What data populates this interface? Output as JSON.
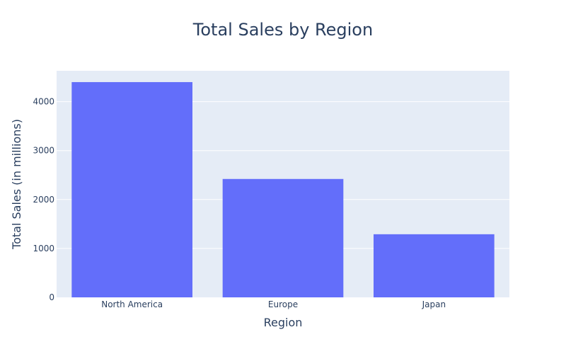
{
  "chart_data": {
    "type": "bar",
    "title": "Total Sales by Region",
    "xlabel": "Region",
    "ylabel": "Total Sales (in millions)",
    "categories": [
      "North America",
      "Europe",
      "Japan"
    ],
    "values": [
      4400,
      2420,
      1290
    ],
    "ylim": [
      0,
      4631
    ],
    "yticks": [
      0,
      1000,
      2000,
      3000,
      4000
    ],
    "ytick_labels": [
      "0",
      "1000",
      "2000",
      "3000",
      "4000"
    ],
    "grid": true,
    "legend": "none",
    "colors": {
      "bar": "#636efa",
      "plot_background": "#e5ecf6",
      "grid": "#ffffff",
      "text": "#2a3f5f"
    }
  }
}
